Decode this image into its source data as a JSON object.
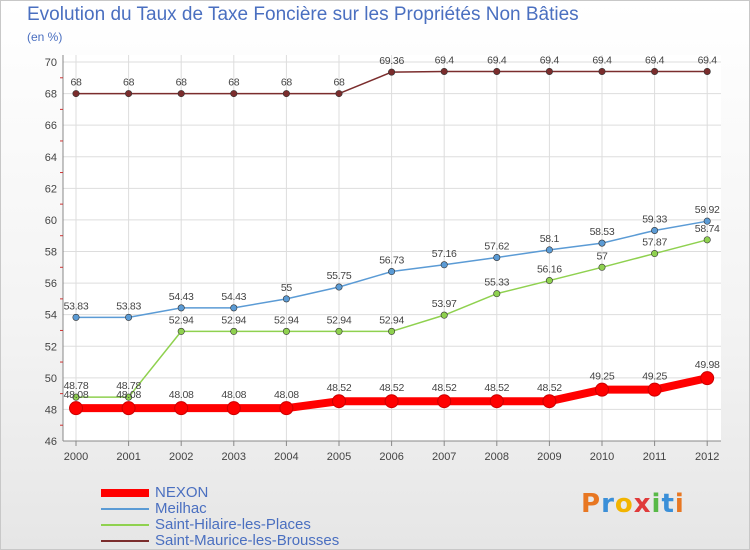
{
  "chart_data": {
    "type": "line",
    "title": "Evolution du Taux de Taxe Foncière sur les Propriétés Non Bâties",
    "unit_label": "(en %)",
    "x": [
      "2000",
      "2001",
      "2002",
      "2003",
      "2004",
      "2005",
      "2006",
      "2007",
      "2008",
      "2009",
      "2010",
      "2011",
      "2012"
    ],
    "ylim": [
      46,
      70
    ],
    "yticks": [
      "46",
      "48",
      "50",
      "52",
      "54",
      "56",
      "58",
      "60",
      "62",
      "64",
      "66",
      "68",
      "70"
    ],
    "grid": true,
    "legend_position": "bottom-left",
    "series": [
      {
        "name": "NEXON",
        "color": "#ff0000",
        "values": [
          48.08,
          48.08,
          48.08,
          48.08,
          48.08,
          48.52,
          48.52,
          48.52,
          48.52,
          48.52,
          49.25,
          49.25,
          49.98
        ],
        "labels": [
          "48.08",
          "48.08",
          "48.08",
          "48.08",
          "48.08",
          "48.52",
          "48.52",
          "48.52",
          "48.52",
          "48.52",
          "49.25",
          "49.25",
          "49.98"
        ]
      },
      {
        "name": "Meilhac",
        "color": "#5b9bd5",
        "values": [
          53.83,
          53.83,
          54.43,
          54.43,
          55,
          55.75,
          56.73,
          57.16,
          57.62,
          58.1,
          58.53,
          59.33,
          59.92
        ],
        "labels": [
          "53.83",
          "53.83",
          "54.43",
          "54.43",
          "55",
          "55.75",
          "56.73",
          "57.16",
          "57.62",
          "58.1",
          "58.53",
          "59.33",
          "59.92"
        ]
      },
      {
        "name": "Saint-Hilaire-les-Places",
        "color": "#8fd14f",
        "values": [
          48.78,
          48.78,
          52.94,
          52.94,
          52.94,
          52.94,
          52.94,
          53.97,
          55.33,
          56.16,
          57,
          57.87,
          58.74
        ],
        "labels": [
          "48.78",
          "48.78",
          "52.94",
          "52.94",
          "52.94",
          "52.94",
          "52.94",
          "53.97",
          "55.33",
          "56.16",
          "57",
          "57.87",
          "58.74"
        ]
      },
      {
        "name": "Saint-Maurice-les-Brousses",
        "color": "#7b2d2d",
        "values": [
          68,
          68,
          68,
          68,
          68,
          68,
          69.36,
          69.4,
          69.4,
          69.4,
          69.4,
          69.4,
          69.4
        ],
        "labels": [
          "68",
          "68",
          "68",
          "68",
          "68",
          "68",
          "69.36",
          "69.4",
          "69.4",
          "69.4",
          "69.4",
          "69.4",
          "69.4"
        ]
      }
    ]
  },
  "logo": {
    "letters": [
      "P",
      "r",
      "o",
      "x",
      "i",
      "t",
      "i"
    ],
    "colors": [
      "#e87722",
      "#3a8fd8",
      "#f2b400",
      "#e03a3a",
      "#58b947",
      "#3a8fd8",
      "#e87722"
    ]
  }
}
